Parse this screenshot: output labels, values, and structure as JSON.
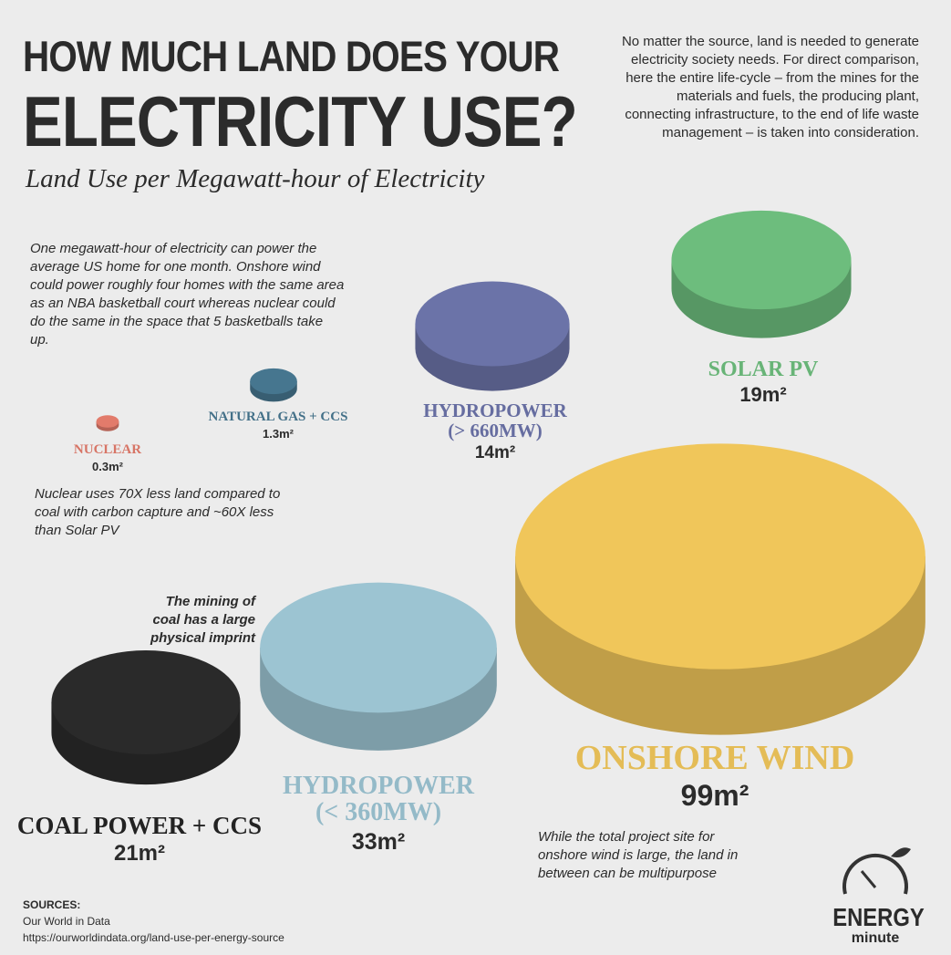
{
  "header": {
    "title_line1": "HOW MUCH LAND DOES YOUR",
    "title_line2": "ELECTRICITY USE?",
    "subtitle": "Land Use per Megawatt-hour of Electricity"
  },
  "intro": "No matter the source, land is needed to generate electricity society needs. For direct comparison, here the entire life-cycle – from the mines for the materials and fuels, the producing plant, connecting infrastructure, to the end of life waste management – is taken into consideration.",
  "context": "One megawatt-hour of electricity can power the average US home for one month. Onshore wind could power roughly four homes with the same area as an NBA basketball court whereas nuclear could do the same in the space that 5 basketballs take up.",
  "items": [
    {
      "label": [
        "NUCLEAR"
      ],
      "value": 0.3,
      "value_label": "0.3m²",
      "color": "#e27b6b"
    },
    {
      "label": [
        "NATURAL GAS + CCS"
      ],
      "value": 1.3,
      "value_label": "1.3m²",
      "color": "#46768f"
    },
    {
      "label": [
        "HYDROPOWER",
        "(> 660MW)"
      ],
      "value": 14,
      "value_label": "14m²",
      "color": "#6b73a8"
    },
    {
      "label": [
        "SOLAR PV"
      ],
      "value": 19,
      "value_label": "19m²",
      "color": "#6dbd7d"
    },
    {
      "label": [
        "ONSHORE WIND"
      ],
      "value": 99,
      "value_label": "99m²",
      "color": "#f0c65a"
    },
    {
      "label": [
        "COAL POWER + CCS"
      ],
      "value": 21,
      "value_label": "21m²",
      "color": "#2a2a2a"
    },
    {
      "label": [
        "HYDROPOWER",
        "(< 360MW)"
      ],
      "value": 33,
      "value_label": "33m²",
      "color": "#9cc4d2"
    }
  ],
  "notes": {
    "nuclear": "Nuclear uses 70X less land compared to coal with carbon capture and ~60X less than Solar PV",
    "coal": "The mining of coal has a large physical imprint",
    "wind": "While the total project site for onshore wind is large, the land in between can be multipurpose"
  },
  "sources": {
    "heading": "SOURCES:",
    "name": "Our World in Data",
    "url": "https://ourworldindata.org/land-use-per-energy-source"
  },
  "logo": {
    "top": "ENERGY",
    "bottom": "minute"
  }
}
